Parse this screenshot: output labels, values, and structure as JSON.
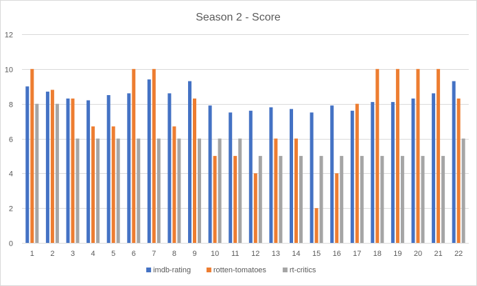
{
  "chart_data": {
    "type": "bar",
    "title": "Season 2 - Score",
    "xlabel": "",
    "ylabel": "",
    "ylim": [
      0,
      12
    ],
    "yticks": [
      0,
      2,
      4,
      6,
      8,
      10,
      12
    ],
    "grid": true,
    "legend_position": "bottom",
    "categories": [
      "1",
      "2",
      "3",
      "4",
      "5",
      "6",
      "7",
      "8",
      "9",
      "10",
      "11",
      "12",
      "13",
      "14",
      "15",
      "16",
      "17",
      "18",
      "19",
      "20",
      "21",
      "22"
    ],
    "series": [
      {
        "name": "imdb-rating",
        "color": "#4472C4",
        "values": [
          9.0,
          8.7,
          8.3,
          8.2,
          8.5,
          8.6,
          9.4,
          8.6,
          9.3,
          7.9,
          7.5,
          7.6,
          7.8,
          7.7,
          7.5,
          7.9,
          7.6,
          8.1,
          8.1,
          8.3,
          8.6,
          9.3
        ]
      },
      {
        "name": "rotten-tomatoes",
        "color": "#ED7D31",
        "values": [
          10,
          8.8,
          8.3,
          6.7,
          6.7,
          10,
          10,
          6.7,
          8.3,
          5,
          5,
          4,
          6,
          6,
          2,
          4,
          8,
          10,
          10,
          10,
          10,
          8.3
        ]
      },
      {
        "name": "rt-critics",
        "color": "#A5A5A5",
        "values": [
          8,
          8,
          6,
          6,
          6,
          6,
          6,
          6,
          6,
          6,
          6,
          5,
          5,
          5,
          5,
          5,
          5,
          5,
          5,
          5,
          5,
          6
        ]
      }
    ]
  }
}
